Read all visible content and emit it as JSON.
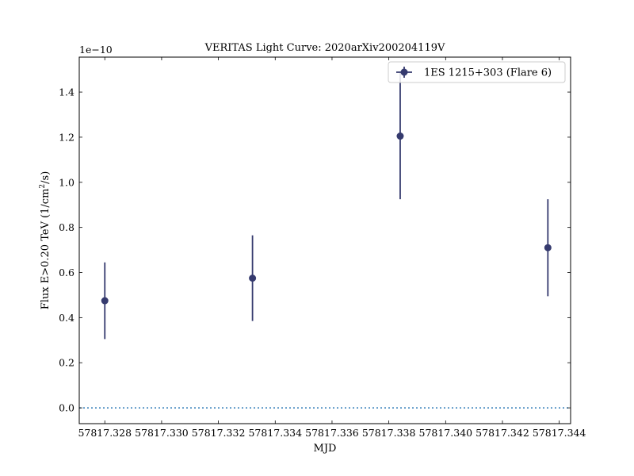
{
  "chart_data": {
    "type": "scatter",
    "title": "VERITAS Light Curve: 2020arXiv200204119V",
    "xlabel": "MJD",
    "ylabel_main": "Flux E>0.20 TeV (1/cm",
    "ylabel_sup": "2",
    "ylabel_tail": "/s)",
    "offset_label": "1e−10",
    "y_scale": 1e-10,
    "xlim": [
      57817.3271,
      57817.3444
    ],
    "ylim": [
      -0.07,
      1.555
    ],
    "x_ticks": [
      57817.328,
      57817.33,
      57817.332,
      57817.334,
      57817.336,
      57817.338,
      57817.34,
      57817.342,
      57817.344
    ],
    "x_tick_labels": [
      "57817.328",
      "57817.330",
      "57817.332",
      "57817.334",
      "57817.336",
      "57817.338",
      "57817.340",
      "57817.342",
      "57817.344"
    ],
    "y_ticks": [
      0.0,
      0.2,
      0.4,
      0.6,
      0.8,
      1.0,
      1.2,
      1.4
    ],
    "y_tick_labels": [
      "0.0",
      "0.2",
      "0.4",
      "0.6",
      "0.8",
      "1.0",
      "1.2",
      "1.4"
    ],
    "baseline": 0.0,
    "series": [
      {
        "name": "1ES 1215+303 (Flare 6)",
        "color": "#353a6e",
        "x": [
          57817.328,
          57817.3332,
          57817.3384,
          57817.3436
        ],
        "y": [
          0.475,
          0.575,
          1.205,
          0.71
        ],
        "yerr": [
          0.17,
          0.19,
          0.28,
          0.215
        ]
      }
    ],
    "baseline_color": "#2f7bb6",
    "legend_position": "top-right",
    "grid": false
  }
}
